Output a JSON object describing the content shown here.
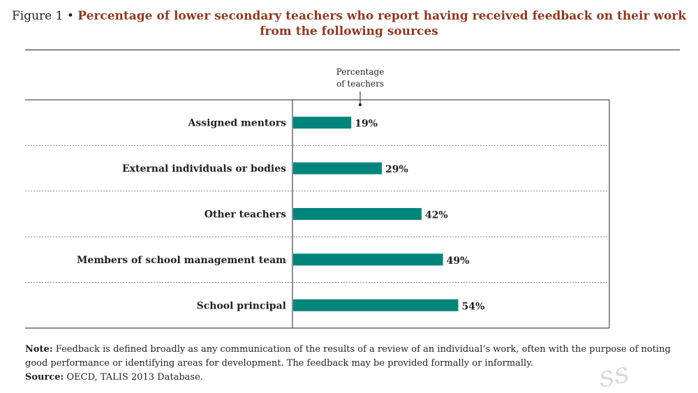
{
  "title": {
    "prefix": "Figure 1 •",
    "main": "Percentage of lower secondary teachers who report having received feedback on their work from the following sources"
  },
  "colors": {
    "bar": "#00857a",
    "title": "#8b3a22",
    "text": "#231f20",
    "grid": "#888888"
  },
  "chart_data": {
    "type": "bar",
    "orientation": "horizontal",
    "axis_header": [
      "Percentage",
      "of teachers"
    ],
    "categories": [
      "Assigned mentors",
      "External individuals or bodies",
      "Other teachers",
      "Members of school management team",
      "School principal"
    ],
    "values": [
      19,
      29,
      42,
      49,
      54
    ],
    "value_labels": [
      "19%",
      "29%",
      "42%",
      "49%",
      "54%"
    ],
    "xlim": [
      0,
      100
    ],
    "grid": false
  },
  "note": {
    "label": "Note:",
    "text": " Feedback is defined broadly as any communication of the results of a review of an individual’s work, often with the purpose of noting good performance or identifying areas for development. The feedback may be provided formally or informally."
  },
  "source": {
    "label": "Source:",
    "text": " OECD, TALIS 2013 Database."
  }
}
